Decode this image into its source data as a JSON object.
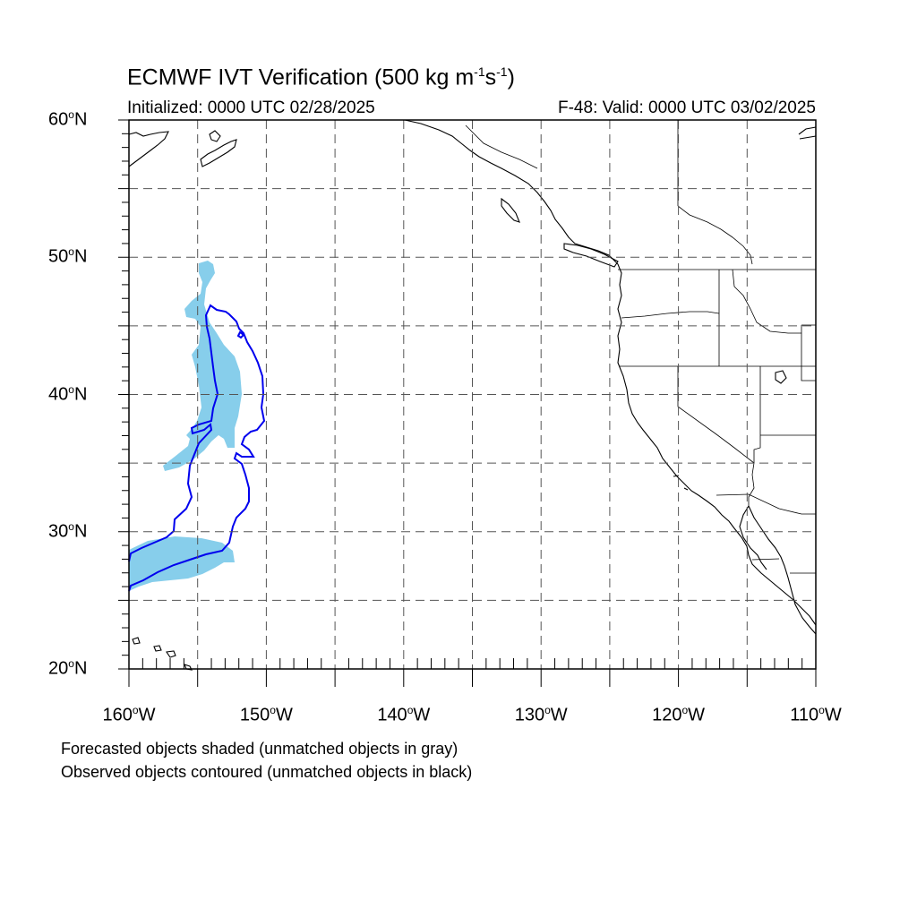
{
  "title": {
    "main": "ECMWF IVT Verification (500 kg m",
    "exp1": "-1",
    "mid": "s",
    "exp2": "-1",
    "end": ")"
  },
  "subtitle": {
    "initialized": "Initialized: 0000 UTC 02/28/2025",
    "valid": "F-48: Valid: 0000 UTC 03/02/2025"
  },
  "lat_labels": [
    {
      "value": 60,
      "text": "60",
      "suffix": "N"
    },
    {
      "value": 50,
      "text": "50",
      "suffix": "N"
    },
    {
      "value": 40,
      "text": "40",
      "suffix": "N"
    },
    {
      "value": 30,
      "text": "30",
      "suffix": "N"
    },
    {
      "value": 20,
      "text": "20",
      "suffix": "N"
    }
  ],
  "lon_labels": [
    {
      "value": -160,
      "text": "160",
      "suffix": "W"
    },
    {
      "value": -150,
      "text": "150",
      "suffix": "W"
    },
    {
      "value": -140,
      "text": "140",
      "suffix": "W"
    },
    {
      "value": -130,
      "text": "130",
      "suffix": "W"
    },
    {
      "value": -120,
      "text": "120",
      "suffix": "W"
    },
    {
      "value": -110,
      "text": "110",
      "suffix": "W"
    }
  ],
  "notes": [
    "Forecasted objects shaded (unmatched objects in gray)",
    "Observed objects contoured (unmatched objects in black)"
  ],
  "colors": {
    "forecast_fill": "#87ceeb",
    "observed_contour": "#0000ee",
    "coastline": "#000000",
    "grid": "#555555"
  },
  "map_extent": {
    "lon_min": -160,
    "lon_max": -110,
    "lat_min": 20,
    "lat_max": 60
  }
}
